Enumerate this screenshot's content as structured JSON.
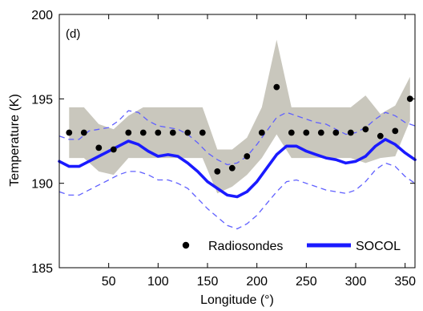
{
  "chart_data": {
    "type": "line",
    "panel_label": "(d)",
    "xlabel": "Longitude (°)",
    "ylabel": "Temperature (K)",
    "xlim": [
      0,
      360
    ],
    "ylim": [
      185,
      200
    ],
    "xticks": [
      50,
      100,
      150,
      200,
      250,
      300,
      350
    ],
    "yticks": [
      185,
      190,
      195,
      200
    ],
    "grid": false,
    "legend": {
      "position": "bottom-right",
      "entries": [
        "Radiosondes",
        "SOCOL"
      ]
    },
    "series": [
      {
        "name": "Radiosondes",
        "kind": "scatter",
        "color": "#000000",
        "x": [
          10,
          25,
          40,
          55,
          70,
          85,
          100,
          115,
          130,
          145,
          160,
          175,
          190,
          205,
          220,
          235,
          250,
          265,
          280,
          295,
          310,
          325,
          340,
          355
        ],
        "y": [
          193.0,
          193.0,
          192.1,
          192.0,
          193.0,
          193.0,
          193.0,
          193.0,
          193.0,
          193.0,
          190.7,
          190.9,
          191.6,
          193.0,
          195.7,
          193.0,
          193.0,
          193.0,
          193.0,
          193.0,
          193.2,
          192.8,
          193.1,
          195.0
        ]
      },
      {
        "name": "SOCOL",
        "kind": "line",
        "color": "#1a1aff",
        "x": [
          0,
          10,
          20,
          30,
          40,
          50,
          60,
          70,
          80,
          90,
          100,
          110,
          120,
          130,
          140,
          150,
          160,
          170,
          180,
          190,
          200,
          210,
          220,
          230,
          240,
          250,
          260,
          270,
          280,
          290,
          300,
          310,
          320,
          330,
          340,
          350,
          360
        ],
        "y": [
          191.3,
          191.0,
          191.0,
          191.3,
          191.6,
          191.9,
          192.2,
          192.5,
          192.3,
          191.9,
          191.6,
          191.7,
          191.6,
          191.2,
          190.7,
          190.1,
          189.7,
          189.3,
          189.2,
          189.5,
          190.1,
          190.9,
          191.7,
          192.2,
          192.2,
          191.9,
          191.7,
          191.5,
          191.4,
          191.2,
          191.3,
          191.6,
          192.2,
          192.6,
          192.3,
          191.8,
          191.4
        ]
      },
      {
        "name": "",
        "kind": "dashed-line",
        "color": "#6060ff",
        "x": [
          0,
          10,
          20,
          30,
          40,
          50,
          60,
          70,
          80,
          90,
          100,
          110,
          120,
          130,
          140,
          150,
          160,
          170,
          180,
          190,
          200,
          210,
          220,
          230,
          240,
          250,
          260,
          270,
          280,
          290,
          300,
          310,
          320,
          330,
          340,
          350,
          360
        ],
        "y": [
          192.8,
          192.6,
          192.6,
          193.1,
          193.2,
          193.3,
          193.7,
          194.3,
          194.2,
          193.7,
          193.4,
          193.3,
          193.2,
          192.9,
          192.4,
          191.8,
          191.4,
          191.1,
          191.2,
          191.6,
          192.3,
          193.1,
          193.9,
          194.2,
          194.0,
          193.8,
          193.6,
          193.5,
          193.2,
          192.9,
          193.0,
          193.3,
          193.8,
          194.2,
          194.0,
          193.6,
          193.4
        ]
      },
      {
        "name": "",
        "kind": "dashed-line",
        "color": "#6060ff",
        "x": [
          0,
          10,
          20,
          30,
          40,
          50,
          60,
          70,
          80,
          90,
          100,
          110,
          120,
          130,
          140,
          150,
          160,
          170,
          180,
          190,
          200,
          210,
          220,
          230,
          240,
          250,
          260,
          270,
          280,
          290,
          300,
          310,
          320,
          330,
          340,
          350,
          360
        ],
        "y": [
          189.5,
          189.3,
          189.3,
          189.6,
          189.9,
          190.2,
          190.5,
          190.7,
          190.7,
          190.5,
          190.2,
          190.2,
          190.0,
          189.7,
          189.1,
          188.5,
          188.0,
          187.5,
          187.3,
          187.6,
          188.1,
          188.8,
          189.5,
          190.1,
          190.2,
          190.0,
          189.8,
          189.6,
          189.5,
          189.4,
          189.6,
          190.1,
          190.8,
          191.2,
          191.0,
          190.4,
          190.0
        ]
      },
      {
        "name": "",
        "kind": "band",
        "color": "#c9c7bd",
        "x": [
          10,
          25,
          40,
          55,
          70,
          85,
          100,
          115,
          130,
          145,
          160,
          175,
          190,
          205,
          220,
          235,
          250,
          265,
          280,
          295,
          310,
          325,
          340,
          355
        ],
        "upper": [
          194.5,
          194.5,
          193.5,
          193.2,
          194.0,
          194.5,
          194.5,
          194.5,
          194.5,
          194.5,
          192.0,
          192.0,
          192.7,
          194.5,
          198.5,
          194.5,
          194.5,
          194.5,
          194.5,
          194.5,
          195.2,
          194.1,
          194.6,
          196.3
        ],
        "lower": [
          191.5,
          191.5,
          190.7,
          190.5,
          191.5,
          191.5,
          191.5,
          191.5,
          191.5,
          191.5,
          189.4,
          189.8,
          190.5,
          191.5,
          192.9,
          191.5,
          191.5,
          191.5,
          191.5,
          191.5,
          191.2,
          191.5,
          191.6,
          193.7
        ]
      }
    ]
  }
}
